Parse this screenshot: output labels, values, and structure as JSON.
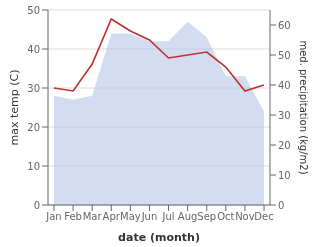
{
  "chart_data": {
    "type": "area",
    "categories": [
      "Jan",
      "Feb",
      "Mar",
      "Apr",
      "May",
      "Jun",
      "Jul",
      "Aug",
      "Sep",
      "Oct",
      "Nov",
      "Dec"
    ],
    "series": [
      {
        "type": "area",
        "color": "#b8c4e8",
        "values": [
          28,
          27,
          28,
          44,
          44,
          42,
          42,
          47,
          43,
          33,
          33,
          24
        ]
      },
      {
        "type": "line",
        "color": "#c03030",
        "axis": "y2",
        "values": [
          39,
          38,
          47,
          62,
          58,
          55,
          49,
          50,
          51,
          46,
          38,
          40
        ]
      }
    ],
    "xlabel": "date (month)",
    "ylabel": "max temp (C)",
    "y2label": "med. precipitation (kg/m2)",
    "ylim": [
      0,
      50
    ],
    "yticks": [
      0,
      10,
      20,
      30,
      40,
      50
    ],
    "y2lim": [
      0,
      65
    ],
    "y2ticks": [
      0,
      10,
      20,
      30,
      40,
      50,
      60
    ],
    "grid": true
  }
}
